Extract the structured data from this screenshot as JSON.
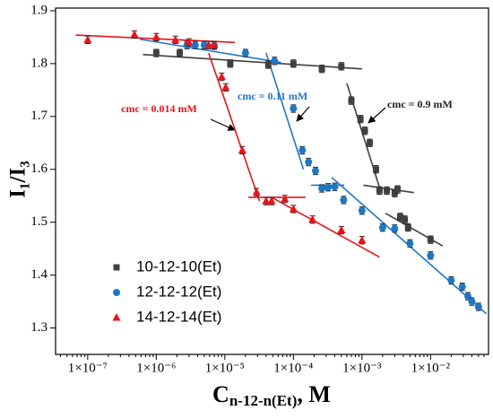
{
  "chart_data": {
    "type": "scatter",
    "xlabel": {
      "main": "C",
      "sub": "n-12-n(Et)",
      "tail": ", M"
    },
    "ylabel": "I₁/I₃",
    "xscale": "log",
    "xlim": [
      3.4e-08,
      0.07
    ],
    "ylim": [
      1.25,
      1.905
    ],
    "xticks": [
      {
        "value": 1e-07,
        "label": "1×10⁻⁷"
      },
      {
        "value": 1e-06,
        "label": "1×10⁻⁶"
      },
      {
        "value": 1e-05,
        "label": "1×10⁻⁵"
      },
      {
        "value": 0.0001,
        "label": "1×10⁻⁴"
      },
      {
        "value": 0.001,
        "label": "1×10⁻³"
      },
      {
        "value": 0.01,
        "label": "1×10⁻²"
      }
    ],
    "yticks": [
      1.3,
      1.4,
      1.5,
      1.6,
      1.7,
      1.8,
      1.9
    ],
    "legend": "lower left",
    "error": 0.007,
    "series": [
      {
        "name": "10-12-10(Et)",
        "color": "#404040",
        "marker": "square",
        "x": [
          1e-06,
          2.2e-06,
          1.2e-05,
          4.3e-05,
          0.0001,
          0.00026,
          0.0005,
          0.0007,
          0.00095,
          0.0011,
          0.0013,
          0.0016,
          0.0018,
          0.0023,
          0.003,
          0.0033,
          0.0036,
          0.0042,
          0.0047,
          0.01
        ],
        "values": [
          1.82,
          1.82,
          1.8,
          1.798,
          1.8,
          1.79,
          1.795,
          1.73,
          1.695,
          1.673,
          1.65,
          1.6,
          1.56,
          1.56,
          1.555,
          1.562,
          1.51,
          1.505,
          1.49,
          1.467
        ]
      },
      {
        "name": "12-12-12(Et)",
        "color": "#1f77c4",
        "marker": "circle",
        "x": [
          2.8e-06,
          3.7e-06,
          5e-06,
          7e-06,
          2e-05,
          5.3e-05,
          0.0001,
          0.000135,
          0.000166,
          0.00021,
          0.00026,
          0.00032,
          0.0004,
          0.00054,
          0.001,
          0.002,
          0.003,
          0.005,
          0.01,
          0.02,
          0.029,
          0.035,
          0.04,
          0.05
        ],
        "values": [
          1.835,
          1.835,
          1.835,
          1.834,
          1.82,
          1.805,
          1.715,
          1.636,
          1.614,
          1.597,
          1.564,
          1.566,
          1.567,
          1.542,
          1.522,
          1.49,
          1.488,
          1.46,
          1.437,
          1.39,
          1.378,
          1.36,
          1.35,
          1.34
        ]
      },
      {
        "name": "14-12-14(Et)",
        "color": "#e8131b",
        "marker": "triangle",
        "x": [
          1e-07,
          4.8e-07,
          1e-06,
          1.9e-06,
          3e-06,
          5.8e-06,
          7e-06,
          9e-06,
          1.03e-05,
          1.8e-05,
          2.9e-05,
          4e-05,
          4.8e-05,
          7.5e-05,
          0.0001,
          0.00019,
          0.0005,
          0.001
        ],
        "values": [
          1.845,
          1.855,
          1.85,
          1.845,
          1.84,
          1.835,
          1.835,
          1.775,
          1.755,
          1.636,
          1.557,
          1.54,
          1.54,
          1.544,
          1.525,
          1.505,
          1.485,
          1.466
        ]
      }
    ],
    "fit_lines": [
      {
        "color": "#404040",
        "x": [
          6.4e-07,
          0.001
        ],
        "y": [
          1.817,
          1.79
        ]
      },
      {
        "color": "#404040",
        "x": [
          0.0006,
          0.0019
        ],
        "y": [
          1.763,
          1.556
        ]
      },
      {
        "color": "#404040",
        "x": [
          0.00105,
          0.0057
        ],
        "y": [
          1.57,
          1.556
        ]
      },
      {
        "color": "#404040",
        "x": [
          0.0022,
          0.015
        ],
        "y": [
          1.517,
          1.455
        ]
      },
      {
        "color": "#1f77c4",
        "x": [
          5.8e-07,
          6.6e-05
        ],
        "y": [
          1.846,
          1.802
        ]
      },
      {
        "color": "#1f77c4",
        "x": [
          4e-05,
          0.00014
        ],
        "y": [
          1.82,
          1.6
        ]
      },
      {
        "color": "#1f77c4",
        "x": [
          0.00018,
          0.00055
        ],
        "y": [
          1.57,
          1.57
        ]
      },
      {
        "color": "#1f77c4",
        "x": [
          0.00036,
          0.065
        ],
        "y": [
          1.585,
          1.327
        ]
      },
      {
        "color": "#e8131b",
        "x": [
          6.7e-08,
          1.4e-05
        ],
        "y": [
          1.854,
          1.84
        ]
      },
      {
        "color": "#e8131b",
        "x": [
          5.8e-06,
          3.2e-05
        ],
        "y": [
          1.82,
          1.54
        ]
      },
      {
        "color": "#e8131b",
        "x": [
          2.2e-05,
          0.00015
        ],
        "y": [
          1.547,
          1.547
        ]
      },
      {
        "color": "#e8131b",
        "x": [
          4.8e-05,
          0.0018
        ],
        "y": [
          1.547,
          1.434
        ]
      }
    ],
    "annotations": [
      {
        "text": "cmc = 0.014 mM",
        "color": "#e8131b"
      },
      {
        "text": "cmc = 0.11 mM",
        "color": "#1f77c4"
      },
      {
        "text": "cmc = 0.9 mM",
        "color": "#222222"
      }
    ]
  }
}
